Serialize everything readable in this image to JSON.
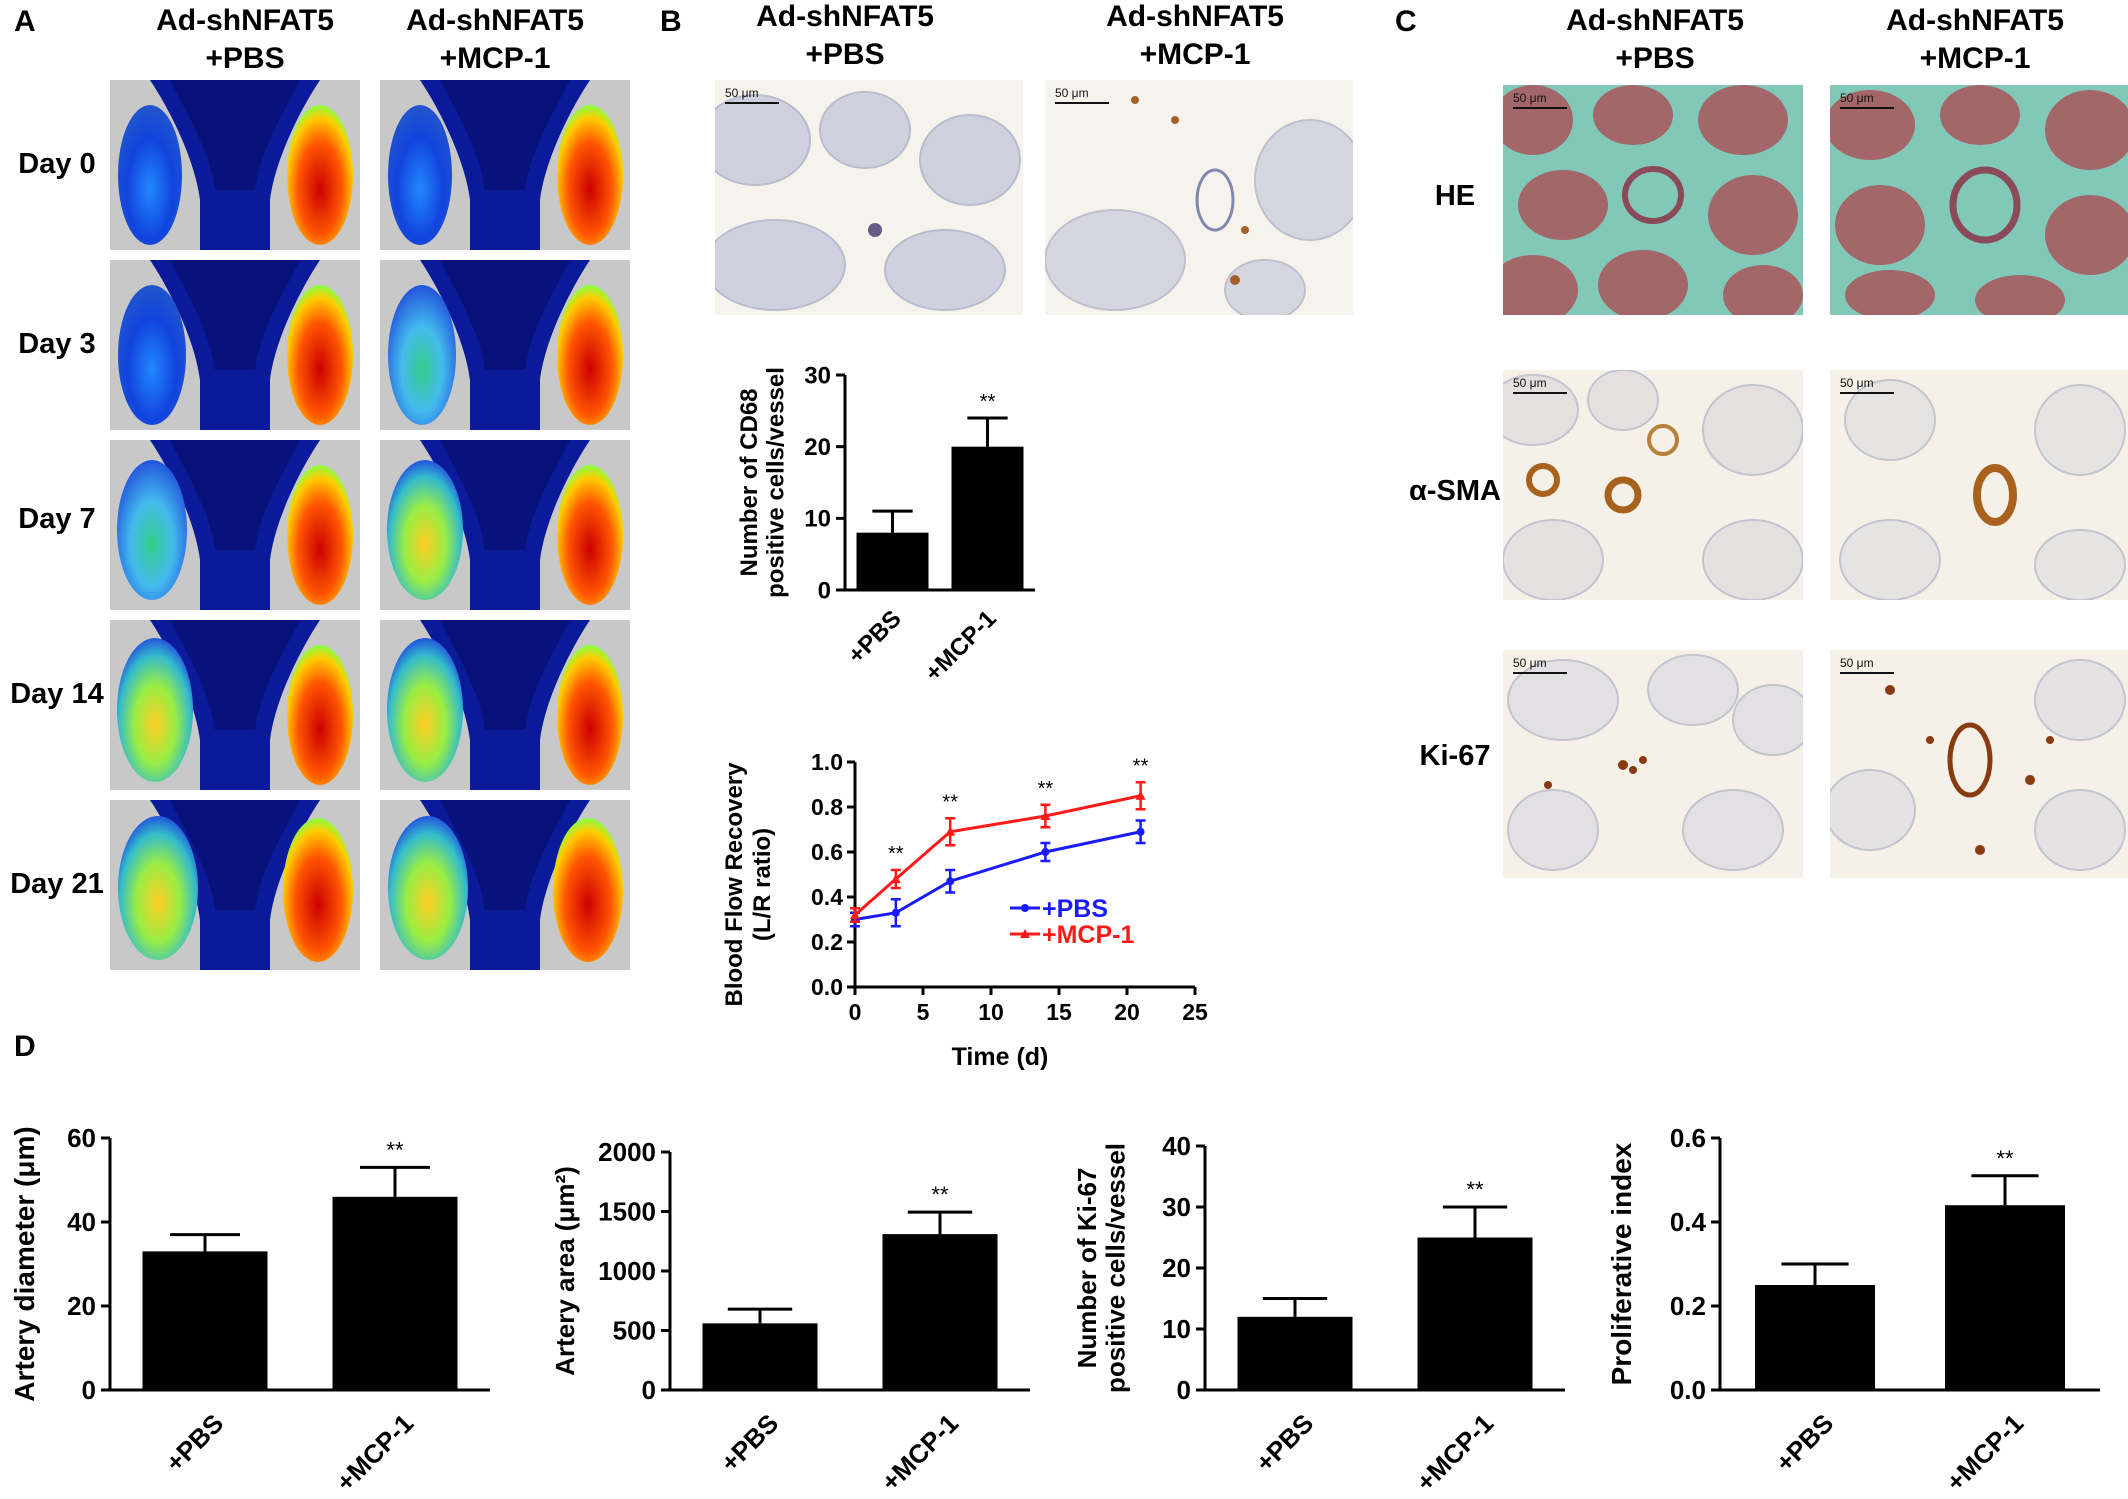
{
  "panels": {
    "a": {
      "label": "A",
      "cols": [
        "Ad-shNFAT5\n+PBS",
        "Ad-shNFAT5\n+MCP-1"
      ],
      "rows": [
        "Day 0",
        "Day 3",
        "Day 7",
        "Day 14",
        "Day 21"
      ]
    },
    "b": {
      "label": "B",
      "cols": [
        "Ad-shNFAT5\n+PBS",
        "Ad-shNFAT5\n+MCP-1"
      ],
      "scalebar": "50 μm"
    },
    "c": {
      "label": "C",
      "cols": [
        "Ad-shNFAT5\n+PBS",
        "Ad-shNFAT5\n+MCP-1"
      ],
      "rows": [
        "HE",
        "α-SMA",
        "Ki-67"
      ],
      "scalebar": "50 μm"
    },
    "d": {
      "label": "D"
    }
  },
  "colors": {
    "pbs": "#1a1aff",
    "mcp": "#ff1a1a",
    "bar": "#000000",
    "tissue_bg": "#f6f3ec",
    "he_bg": "#82c8b8",
    "doppler_bg": "#c8c8c8"
  },
  "chart_data": [
    {
      "id": "cd68",
      "type": "bar",
      "categories": [
        "+PBS",
        "+MCP-1"
      ],
      "values": [
        8,
        20
      ],
      "errors": [
        3,
        4
      ],
      "significance": [
        "",
        "**"
      ],
      "ylabel": "Number of CD68\npositive cells/vessel",
      "ylim": [
        0,
        30
      ],
      "yticks": [
        "0",
        "10",
        "20",
        "30"
      ]
    },
    {
      "id": "bfr",
      "type": "line",
      "xlabel": "Time (d)",
      "ylabel": "Blood Flow Recovery\n(L/R ratio)",
      "xlim": [
        0,
        25
      ],
      "ylim": [
        0,
        1.0
      ],
      "xticks": [
        "0",
        "5",
        "10",
        "15",
        "20",
        "25"
      ],
      "yticks": [
        "0.0",
        "0.2",
        "0.4",
        "0.6",
        "0.8",
        "1.0"
      ],
      "x": [
        0,
        3,
        7,
        14,
        21
      ],
      "significance": [
        "",
        "**",
        "**",
        "**",
        "**"
      ],
      "legend": "right",
      "series": [
        {
          "name": "+PBS",
          "values": [
            0.3,
            0.33,
            0.47,
            0.6,
            0.69
          ],
          "errors": [
            0.03,
            0.06,
            0.05,
            0.04,
            0.05
          ]
        },
        {
          "name": "+MCP-1",
          "values": [
            0.32,
            0.48,
            0.69,
            0.76,
            0.85
          ],
          "errors": [
            0.03,
            0.04,
            0.06,
            0.05,
            0.06
          ]
        }
      ]
    },
    {
      "id": "diam",
      "type": "bar",
      "categories": [
        "+PBS",
        "+MCP-1"
      ],
      "values": [
        33,
        46
      ],
      "errors": [
        4,
        7
      ],
      "significance": [
        "",
        "**"
      ],
      "ylabel": "Artery diameter (μm)",
      "ylim": [
        0,
        60
      ],
      "yticks": [
        "0",
        "20",
        "40",
        "60"
      ]
    },
    {
      "id": "area",
      "type": "bar",
      "categories": [
        "+PBS",
        "+MCP-1"
      ],
      "values": [
        560,
        1310
      ],
      "errors": [
        120,
        185
      ],
      "significance": [
        "",
        "**"
      ],
      "ylabel": "Artery area (μm²)",
      "ylim": [
        0,
        2000
      ],
      "yticks": [
        "0",
        "500",
        "1000",
        "1500",
        "2000"
      ]
    },
    {
      "id": "ki67",
      "type": "bar",
      "categories": [
        "+PBS",
        "+MCP-1"
      ],
      "values": [
        12,
        25
      ],
      "errors": [
        3,
        5
      ],
      "significance": [
        "",
        "**"
      ],
      "ylabel": "Number of Ki-67\npositive cells/vessel",
      "ylim": [
        0,
        40
      ],
      "yticks": [
        "0",
        "10",
        "20",
        "30",
        "40"
      ]
    },
    {
      "id": "prolif",
      "type": "bar",
      "categories": [
        "+PBS",
        "+MCP-1"
      ],
      "values": [
        0.25,
        0.44
      ],
      "errors": [
        0.05,
        0.07
      ],
      "significance": [
        "",
        "**"
      ],
      "ylabel": "Proliferative index",
      "ylim": [
        0,
        0.6
      ],
      "yticks": [
        "0.0",
        "0.2",
        "0.4",
        "0.6"
      ]
    }
  ]
}
